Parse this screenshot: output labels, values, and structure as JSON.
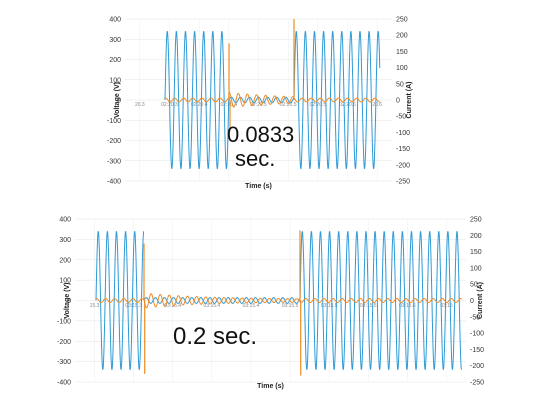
{
  "chart_data": [
    {
      "type": "line",
      "xlabel": "Time (s)",
      "ylabel": "Voltage (V)",
      "y2label": "Current (A)",
      "ylim": [
        -400,
        400
      ],
      "y2lim": [
        -250,
        250
      ],
      "yticks": [
        400,
        300,
        200,
        100,
        0,
        -100,
        -200,
        -300,
        -400
      ],
      "y2ticks": [
        250,
        200,
        150,
        100,
        50,
        0,
        -50,
        -100,
        -150,
        -200,
        -250
      ],
      "xticks": [
        "20.3",
        "02:20.3",
        "02:20.4",
        "02:20.4",
        "02:20.5",
        "02:20.5",
        "02:20.5",
        "02:20.6",
        "20.6"
      ],
      "grid": true,
      "series": [
        {
          "axis": "left",
          "color": "#2e9bd6",
          "voltage_peak": 340,
          "sag_window_s": [
            0.0,
            0.0833
          ]
        },
        {
          "axis": "right",
          "color": "#f08a24",
          "current_peak": 12,
          "spikes": [
            175,
            -95,
            250
          ]
        }
      ],
      "annotation": "0.0833\nsec."
    },
    {
      "type": "line",
      "xlabel": "Time (s)",
      "ylabel": "Voltage (V)",
      "y2label": "Current (A)",
      "ylim": [
        -400,
        400
      ],
      "y2lim": [
        -250,
        250
      ],
      "yticks": [
        400,
        300,
        200,
        100,
        0,
        -100,
        -200,
        -300,
        -400
      ],
      "y2ticks": [
        250,
        200,
        150,
        100,
        50,
        0,
        -50,
        -100,
        -150,
        -200,
        -250
      ],
      "xticks": [
        "15.3",
        "03:15.3",
        "03:15.4",
        "03:15.4",
        "03:15.4",
        "03:15.5",
        "03:15.5",
        "03:15.5",
        "03:15.6",
        "03:15"
      ],
      "grid": true,
      "series": [
        {
          "axis": "left",
          "color": "#2e9bd6",
          "voltage_peak": 340,
          "sag_window_s": [
            0.0,
            0.2
          ]
        },
        {
          "axis": "right",
          "color": "#f08a24",
          "current_peak": 12,
          "spikes": [
            175,
            -225,
            215,
            -230
          ]
        }
      ],
      "annotation": "0.2 sec."
    }
  ]
}
